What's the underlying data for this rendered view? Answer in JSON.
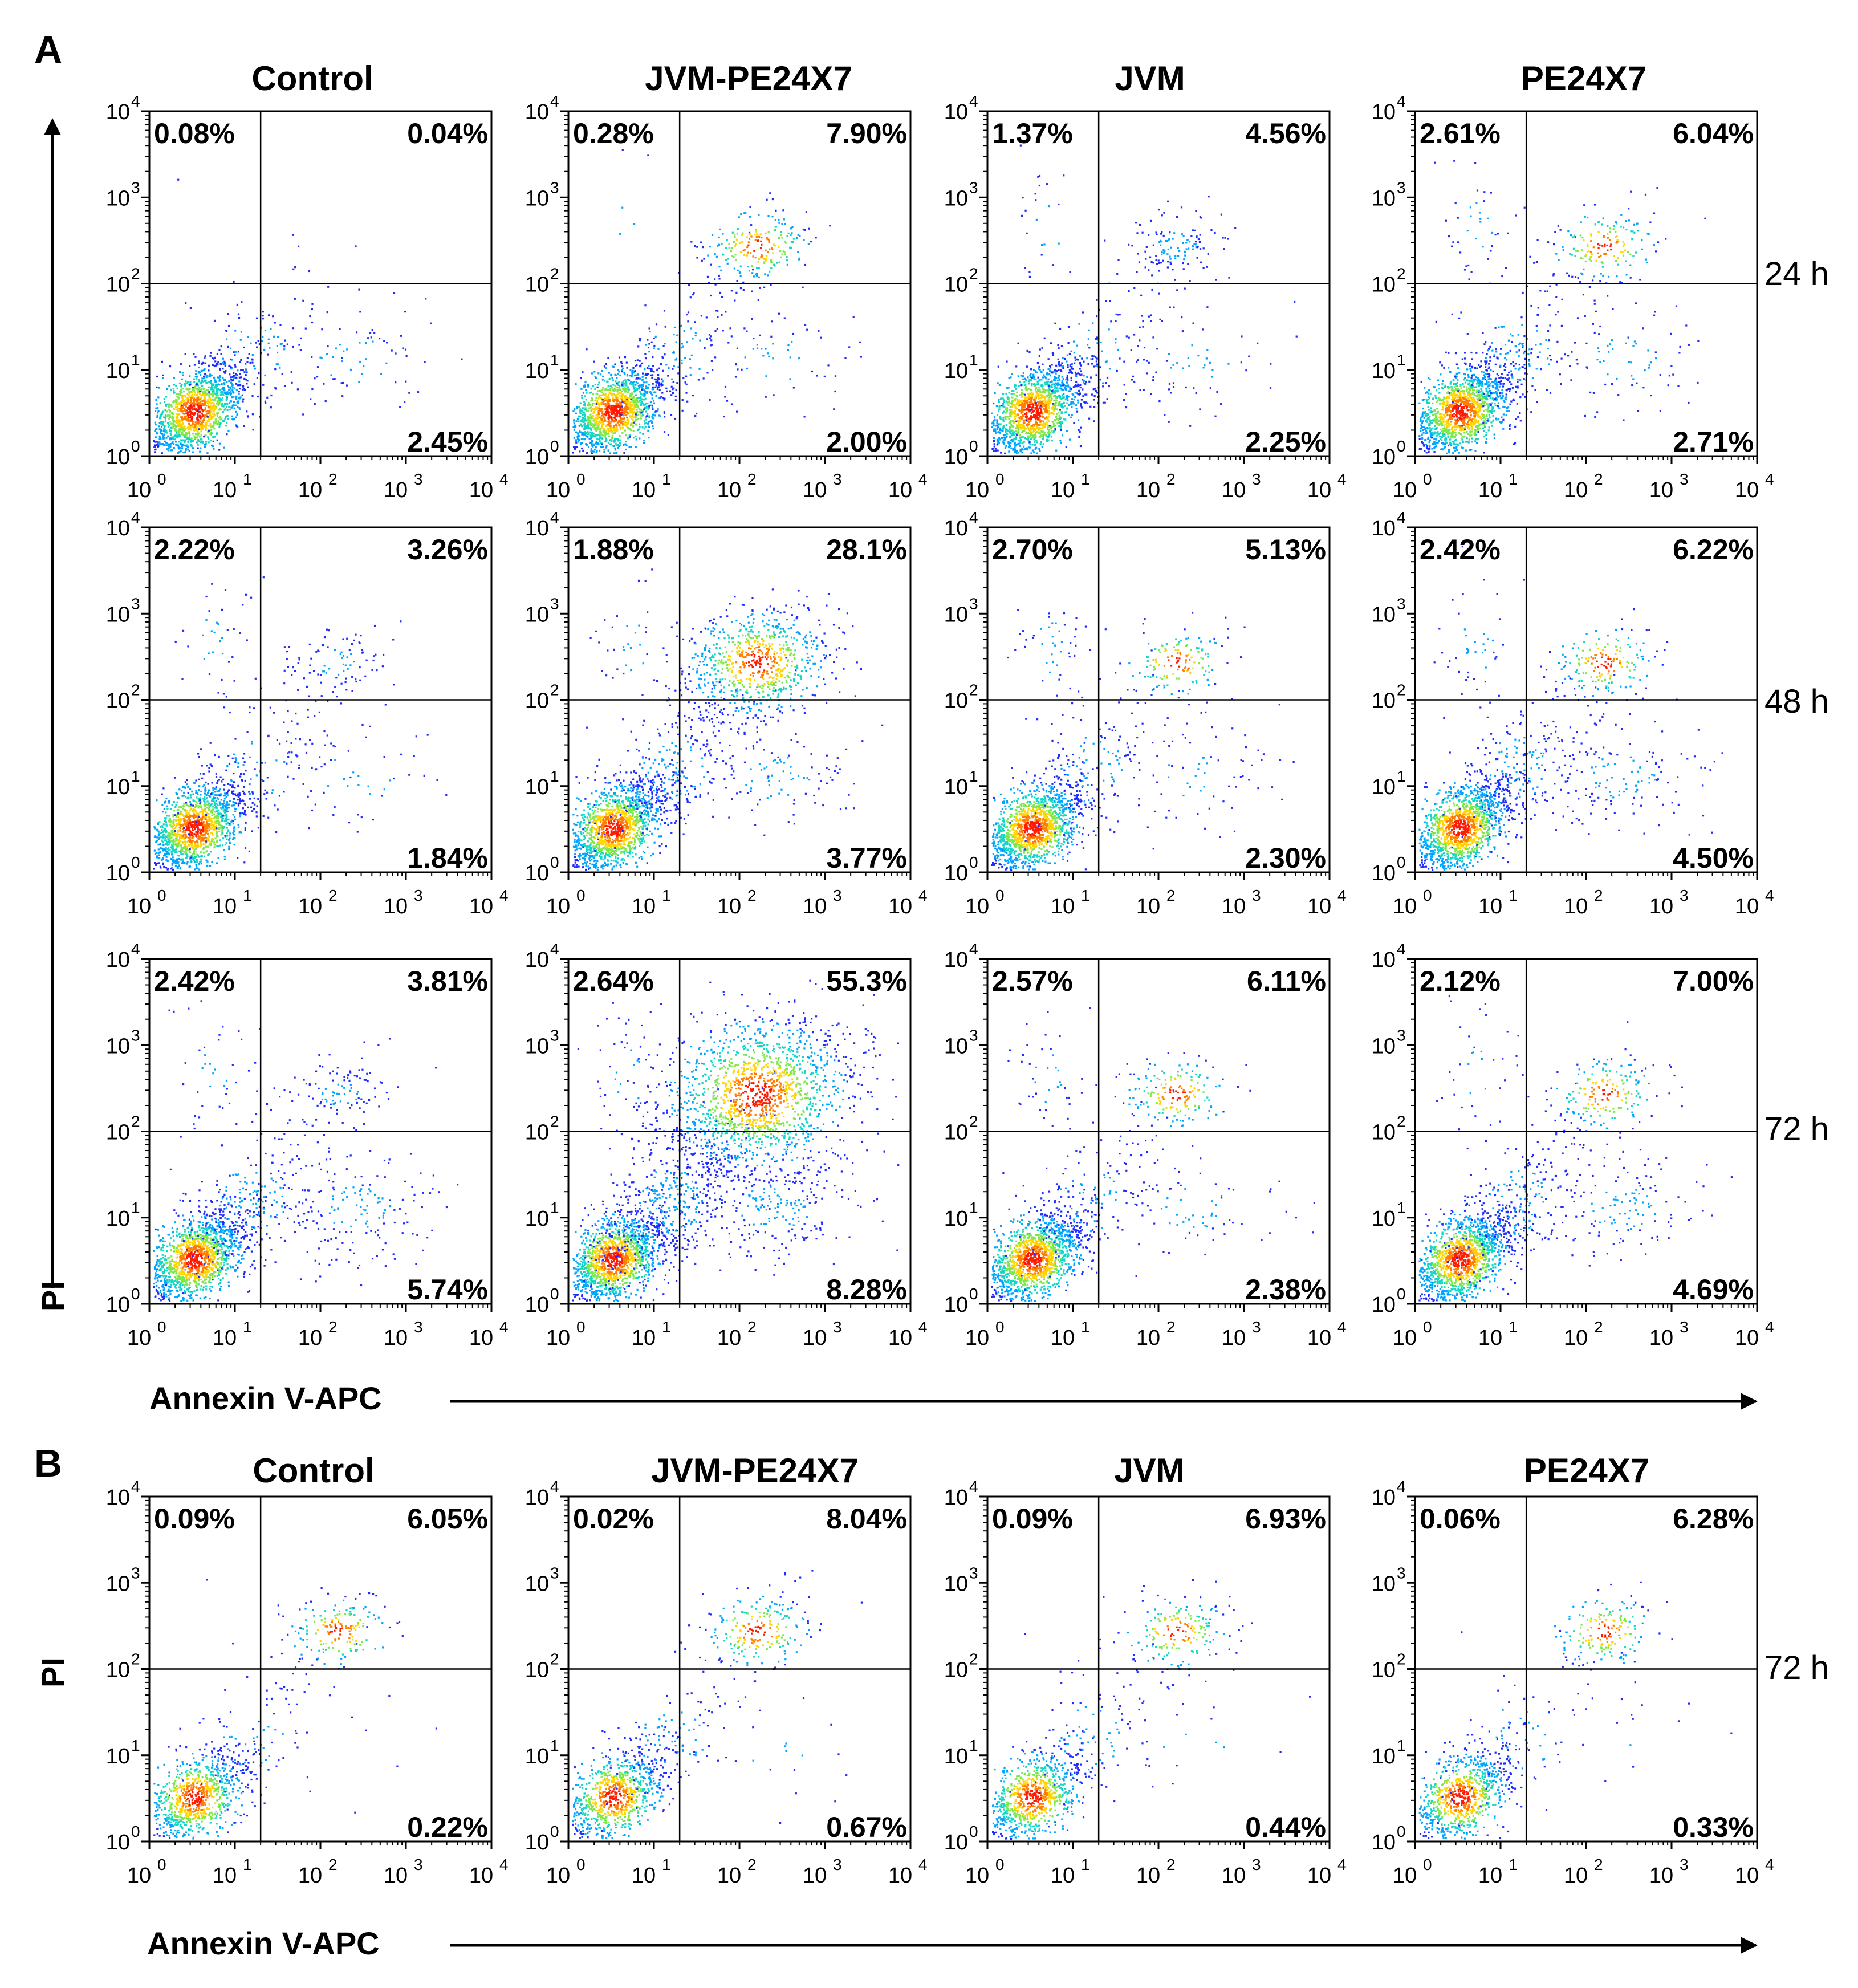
{
  "labels": {
    "panel_a": "A",
    "panel_b": "B",
    "xlabel": "Annexin V-APC",
    "ylabel": "PI",
    "ticks": [
      "10",
      "0",
      "1",
      "2",
      "3",
      "4"
    ]
  },
  "colors": {
    "density": [
      "#1f2bff",
      "#00a5ff",
      "#12d6c6",
      "#7ee84a",
      "#ffd400",
      "#ff7d00",
      "#ff1a00"
    ]
  },
  "chart_data": [
    {
      "type": "scatter",
      "panel": "A",
      "x_scale": "log",
      "y_scale": "log",
      "xlim": [
        1,
        10000
      ],
      "ylim": [
        1,
        10000
      ],
      "gate": {
        "x": 20,
        "y": 100
      },
      "columns": [
        "Control",
        "JVM-PE24X7",
        "JVM",
        "PE24X7"
      ],
      "rows": [
        "24 h",
        "48 h",
        "72 h"
      ],
      "quadrant_percent": [
        [
          {
            "UL": "0.08%",
            "UR": "0.04%",
            "LR": "2.45%"
          },
          {
            "UL": "0.28%",
            "UR": "7.90%",
            "LR": "2.00%"
          },
          {
            "UL": "1.37%",
            "UR": "4.56%",
            "LR": "2.25%"
          },
          {
            "UL": "2.61%",
            "UR": "6.04%",
            "LR": "2.71%"
          }
        ],
        [
          {
            "UL": "2.22%",
            "UR": "3.26%",
            "LR": "1.84%"
          },
          {
            "UL": "1.88%",
            "UR": "28.1%",
            "LR": "3.77%"
          },
          {
            "UL": "2.70%",
            "UR": "5.13%",
            "LR": "2.30%"
          },
          {
            "UL": "2.42%",
            "UR": "6.22%",
            "LR": "4.50%"
          }
        ],
        [
          {
            "UL": "2.42%",
            "UR": "3.81%",
            "LR": "5.74%"
          },
          {
            "UL": "2.64%",
            "UR": "55.3%",
            "LR": "8.28%"
          },
          {
            "UL": "2.57%",
            "UR": "6.11%",
            "LR": "2.38%"
          },
          {
            "UL": "2.12%",
            "UR": "7.00%",
            "LR": "4.69%"
          }
        ]
      ]
    },
    {
      "type": "scatter",
      "panel": "B",
      "x_scale": "log",
      "y_scale": "log",
      "xlim": [
        1,
        10000
      ],
      "ylim": [
        1,
        10000
      ],
      "gate": {
        "x": 20,
        "y": 100
      },
      "columns": [
        "Control",
        "JVM-PE24X7",
        "JVM",
        "PE24X7"
      ],
      "rows": [
        "72 h"
      ],
      "quadrant_percent": [
        [
          {
            "UL": "0.09%",
            "UR": "6.05%",
            "LR": "0.22%"
          },
          {
            "UL": "0.02%",
            "UR": "8.04%",
            "LR": "0.67%"
          },
          {
            "UL": "0.09%",
            "UR": "6.93%",
            "LR": "0.44%"
          },
          {
            "UL": "0.06%",
            "UR": "6.28%",
            "LR": "0.33%"
          }
        ]
      ]
    }
  ]
}
